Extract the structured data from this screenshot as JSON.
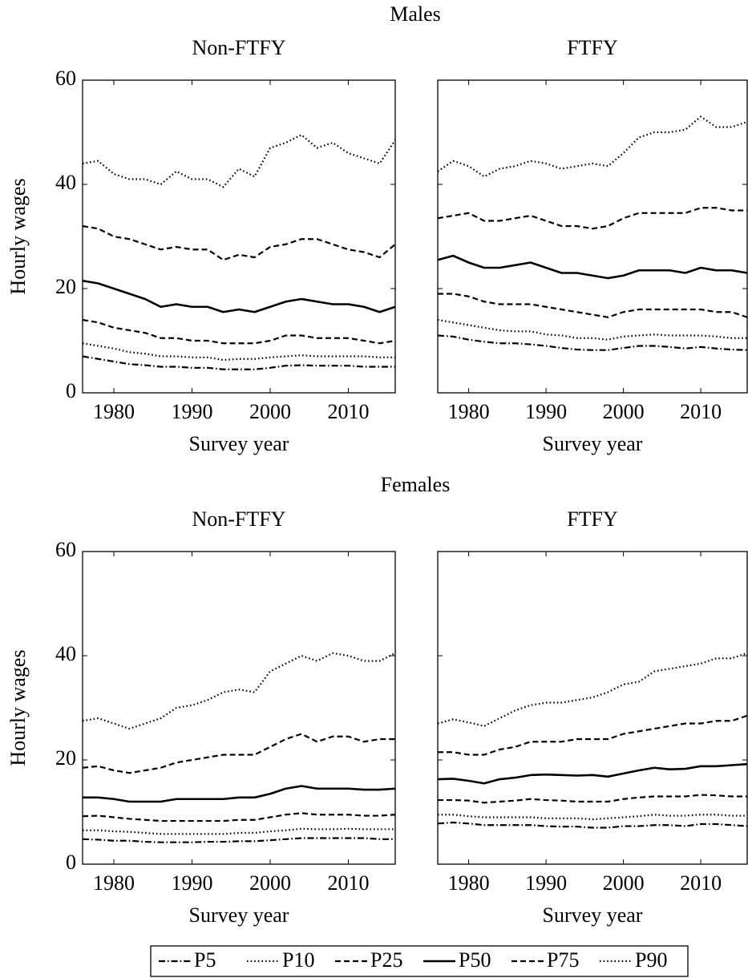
{
  "groups": [
    "Males",
    "Females"
  ],
  "chart_data": [
    {
      "type": "line",
      "title": "Non-FTFY",
      "xlabel": "Survey year",
      "ylabel": "Hourly wages",
      "x": [
        1976,
        1978,
        1980,
        1982,
        1984,
        1986,
        1988,
        1990,
        1992,
        1994,
        1996,
        1998,
        2000,
        2002,
        2004,
        2006,
        2008,
        2010,
        2012,
        2014,
        2016
      ],
      "xlim": [
        1976,
        2016
      ],
      "xticks": [
        1980,
        1990,
        2000,
        2010
      ],
      "ylim": [
        0,
        60
      ],
      "yticks": [
        0,
        20,
        40,
        60
      ],
      "ytick_labels": true,
      "series": [
        {
          "name": "P5",
          "color": "#000",
          "style": "dashdot",
          "values": [
            7,
            6.5,
            6,
            5.5,
            5.3,
            5,
            5,
            4.8,
            4.8,
            4.5,
            4.5,
            4.5,
            4.8,
            5.2,
            5.3,
            5.2,
            5.2,
            5.2,
            5,
            5,
            5
          ]
        },
        {
          "name": "P10",
          "color": "#000",
          "style": "dotted",
          "values": [
            9.5,
            9,
            8.5,
            7.8,
            7.5,
            7,
            7,
            6.8,
            6.8,
            6.3,
            6.5,
            6.5,
            6.8,
            7,
            7.2,
            7,
            7,
            7,
            7,
            6.8,
            6.8
          ]
        },
        {
          "name": "P25",
          "color": "#000",
          "style": "dashed",
          "values": [
            14,
            13.5,
            12.5,
            12,
            11.5,
            10.5,
            10.5,
            10,
            10,
            9.5,
            9.5,
            9.5,
            10,
            11,
            11,
            10.5,
            10.5,
            10.5,
            10,
            9.5,
            10
          ]
        },
        {
          "name": "P50",
          "color": "#000",
          "style": "solid",
          "values": [
            21.5,
            21,
            20,
            19,
            18,
            16.5,
            17,
            16.5,
            16.5,
            15.5,
            16,
            15.5,
            16.5,
            17.5,
            18,
            17.5,
            17,
            17,
            16.5,
            15.5,
            16.5
          ]
        },
        {
          "name": "P75",
          "color": "#000",
          "style": "dashed",
          "values": [
            32,
            31.5,
            30,
            29.5,
            28.5,
            27.5,
            28,
            27.5,
            27.5,
            25.5,
            26.5,
            26,
            28,
            28.5,
            29.5,
            29.5,
            28.5,
            27.5,
            27,
            26,
            28.5
          ]
        },
        {
          "name": "P90",
          "color": "#000",
          "style": "dotted",
          "values": [
            44,
            44.5,
            42,
            41,
            41,
            40,
            42.5,
            41,
            41,
            39.5,
            43,
            41.5,
            47,
            48,
            49.5,
            47,
            48,
            46,
            45,
            44,
            48.5
          ]
        }
      ]
    },
    {
      "type": "line",
      "title": "FTFY",
      "xlabel": "Survey year",
      "x": [
        1976,
        1978,
        1980,
        1982,
        1984,
        1986,
        1988,
        1990,
        1992,
        1994,
        1996,
        1998,
        2000,
        2002,
        2004,
        2006,
        2008,
        2010,
        2012,
        2014,
        2016
      ],
      "xlim": [
        1976,
        2016
      ],
      "xticks": [
        1980,
        1990,
        2000,
        2010
      ],
      "ylim": [
        0,
        60
      ],
      "yticks": [
        0,
        20,
        40,
        60
      ],
      "ytick_labels": false,
      "series": [
        {
          "name": "P5",
          "color": "#000",
          "style": "dashdot",
          "values": [
            11,
            10.8,
            10.2,
            9.8,
            9.5,
            9.5,
            9.3,
            9,
            8.6,
            8.3,
            8.2,
            8.2,
            8.6,
            9,
            9,
            8.8,
            8.5,
            8.8,
            8.5,
            8.3,
            8.2
          ]
        },
        {
          "name": "P10",
          "color": "#000",
          "style": "dotted",
          "values": [
            14,
            13.5,
            13,
            12.5,
            12,
            11.8,
            11.8,
            11.2,
            11,
            10.5,
            10.5,
            10.2,
            10.8,
            11,
            11.2,
            11,
            11,
            11,
            10.8,
            10.5,
            10.5
          ]
        },
        {
          "name": "P25",
          "color": "#000",
          "style": "dashed",
          "values": [
            19,
            19,
            18.5,
            17.5,
            17,
            17,
            17,
            16.5,
            16,
            15.5,
            15,
            14.5,
            15.5,
            16,
            16,
            16,
            16,
            16,
            15.5,
            15.5,
            14.5
          ]
        },
        {
          "name": "P50",
          "color": "#000",
          "style": "solid",
          "values": [
            25.5,
            26.3,
            25,
            24,
            24,
            24.5,
            25,
            24,
            23,
            23,
            22.5,
            22,
            22.5,
            23.5,
            23.5,
            23.5,
            23,
            24,
            23.5,
            23.5,
            23
          ]
        },
        {
          "name": "P75",
          "color": "#000",
          "style": "dashed",
          "values": [
            33.5,
            34,
            34.5,
            33,
            33,
            33.5,
            34,
            33,
            32,
            32,
            31.5,
            32,
            33.5,
            34.5,
            34.5,
            34.5,
            34.5,
            35.5,
            35.5,
            35,
            35
          ]
        },
        {
          "name": "P90",
          "color": "#000",
          "style": "dotted",
          "values": [
            42.5,
            44.5,
            43.5,
            41.5,
            43,
            43.5,
            44.5,
            44,
            43,
            43.5,
            44,
            43.5,
            46,
            49,
            50,
            50,
            50.5,
            53,
            51,
            51,
            52
          ]
        }
      ]
    },
    {
      "type": "line",
      "title": "Non-FTFY",
      "xlabel": "Survey year",
      "ylabel": "Hourly wages",
      "x": [
        1976,
        1978,
        1980,
        1982,
        1984,
        1986,
        1988,
        1990,
        1992,
        1994,
        1996,
        1998,
        2000,
        2002,
        2004,
        2006,
        2008,
        2010,
        2012,
        2014,
        2016
      ],
      "xlim": [
        1976,
        2016
      ],
      "xticks": [
        1980,
        1990,
        2000,
        2010
      ],
      "ylim": [
        0,
        60
      ],
      "yticks": [
        0,
        20,
        40,
        60
      ],
      "ytick_labels": true,
      "series": [
        {
          "name": "P5",
          "color": "#000",
          "style": "dashdot",
          "values": [
            4.8,
            4.7,
            4.5,
            4.5,
            4.3,
            4.2,
            4.2,
            4.2,
            4.3,
            4.3,
            4.4,
            4.4,
            4.6,
            4.8,
            5,
            5,
            5,
            5,
            5,
            4.8,
            4.8
          ]
        },
        {
          "name": "P10",
          "color": "#000",
          "style": "dotted",
          "values": [
            6.5,
            6.5,
            6.3,
            6.2,
            6,
            5.8,
            5.8,
            5.8,
            5.8,
            5.8,
            6,
            6,
            6.3,
            6.5,
            6.8,
            6.7,
            6.7,
            6.8,
            6.7,
            6.7,
            6.7
          ]
        },
        {
          "name": "P25",
          "color": "#000",
          "style": "dashed",
          "values": [
            9.2,
            9.3,
            9,
            8.7,
            8.5,
            8.3,
            8.3,
            8.3,
            8.3,
            8.3,
            8.5,
            8.5,
            9,
            9.5,
            9.8,
            9.5,
            9.5,
            9.5,
            9.3,
            9.3,
            9.5
          ]
        },
        {
          "name": "P50",
          "color": "#000",
          "style": "solid",
          "values": [
            12.8,
            12.8,
            12.5,
            12,
            12,
            12,
            12.5,
            12.5,
            12.5,
            12.5,
            12.8,
            12.8,
            13.5,
            14.5,
            15,
            14.5,
            14.5,
            14.5,
            14.3,
            14.3,
            14.5
          ]
        },
        {
          "name": "P75",
          "color": "#000",
          "style": "dashed",
          "values": [
            18.5,
            18.8,
            18,
            17.5,
            18,
            18.5,
            19.5,
            20,
            20.5,
            21,
            21,
            21,
            22.5,
            24,
            25,
            23.5,
            24.5,
            24.5,
            23.5,
            24,
            24
          ]
        },
        {
          "name": "P90",
          "color": "#000",
          "style": "dotted",
          "values": [
            27.5,
            28,
            27,
            26,
            27,
            28,
            30,
            30.5,
            31.5,
            33,
            33.5,
            33,
            37,
            38.5,
            40,
            39,
            40.5,
            40,
            39,
            39,
            40.5
          ]
        }
      ]
    },
    {
      "type": "line",
      "title": "FTFY",
      "xlabel": "Survey year",
      "x": [
        1976,
        1978,
        1980,
        1982,
        1984,
        1986,
        1988,
        1990,
        1992,
        1994,
        1996,
        1998,
        2000,
        2002,
        2004,
        2006,
        2008,
        2010,
        2012,
        2014,
        2016
      ],
      "xlim": [
        1976,
        2016
      ],
      "xticks": [
        1980,
        1990,
        2000,
        2010
      ],
      "ylim": [
        0,
        60
      ],
      "yticks": [
        0,
        20,
        40,
        60
      ],
      "ytick_labels": false,
      "series": [
        {
          "name": "P5",
          "color": "#000",
          "style": "dashdot",
          "values": [
            7.8,
            8,
            7.8,
            7.5,
            7.5,
            7.5,
            7.5,
            7.3,
            7.2,
            7.2,
            7,
            7,
            7.3,
            7.3,
            7.5,
            7.5,
            7.3,
            7.7,
            7.7,
            7.5,
            7.3
          ]
        },
        {
          "name": "P10",
          "color": "#000",
          "style": "dotted",
          "values": [
            9.5,
            9.5,
            9.2,
            9,
            9,
            9,
            9,
            8.8,
            8.8,
            8.8,
            8.6,
            8.8,
            9,
            9.2,
            9.5,
            9.3,
            9.3,
            9.5,
            9.5,
            9.3,
            9.3
          ]
        },
        {
          "name": "P25",
          "color": "#000",
          "style": "dashed",
          "values": [
            12.3,
            12.3,
            12.2,
            11.8,
            12,
            12.2,
            12.5,
            12.3,
            12.2,
            12,
            12,
            12,
            12.5,
            12.8,
            13,
            13,
            13,
            13.3,
            13.2,
            13,
            13
          ]
        },
        {
          "name": "P50",
          "color": "#000",
          "style": "solid",
          "values": [
            16.3,
            16.4,
            16,
            15.5,
            16.3,
            16.6,
            17.1,
            17.2,
            17.1,
            17,
            17.1,
            16.8,
            17.4,
            18,
            18.5,
            18.2,
            18.3,
            18.8,
            18.8,
            19,
            19.2
          ]
        },
        {
          "name": "P75",
          "color": "#000",
          "style": "dashed",
          "values": [
            21.5,
            21.5,
            21,
            21,
            22,
            22.5,
            23.5,
            23.5,
            23.5,
            24,
            24,
            24,
            25,
            25.5,
            26,
            26.5,
            27,
            27,
            27.5,
            27.5,
            28.5
          ]
        },
        {
          "name": "P90",
          "color": "#000",
          "style": "dotted",
          "values": [
            27,
            27.8,
            27.2,
            26.5,
            28,
            29.5,
            30.5,
            31,
            31,
            31.5,
            32,
            33,
            34.5,
            35,
            37,
            37.5,
            38,
            38.5,
            39.5,
            39.5,
            40.5
          ]
        }
      ]
    }
  ]
}
